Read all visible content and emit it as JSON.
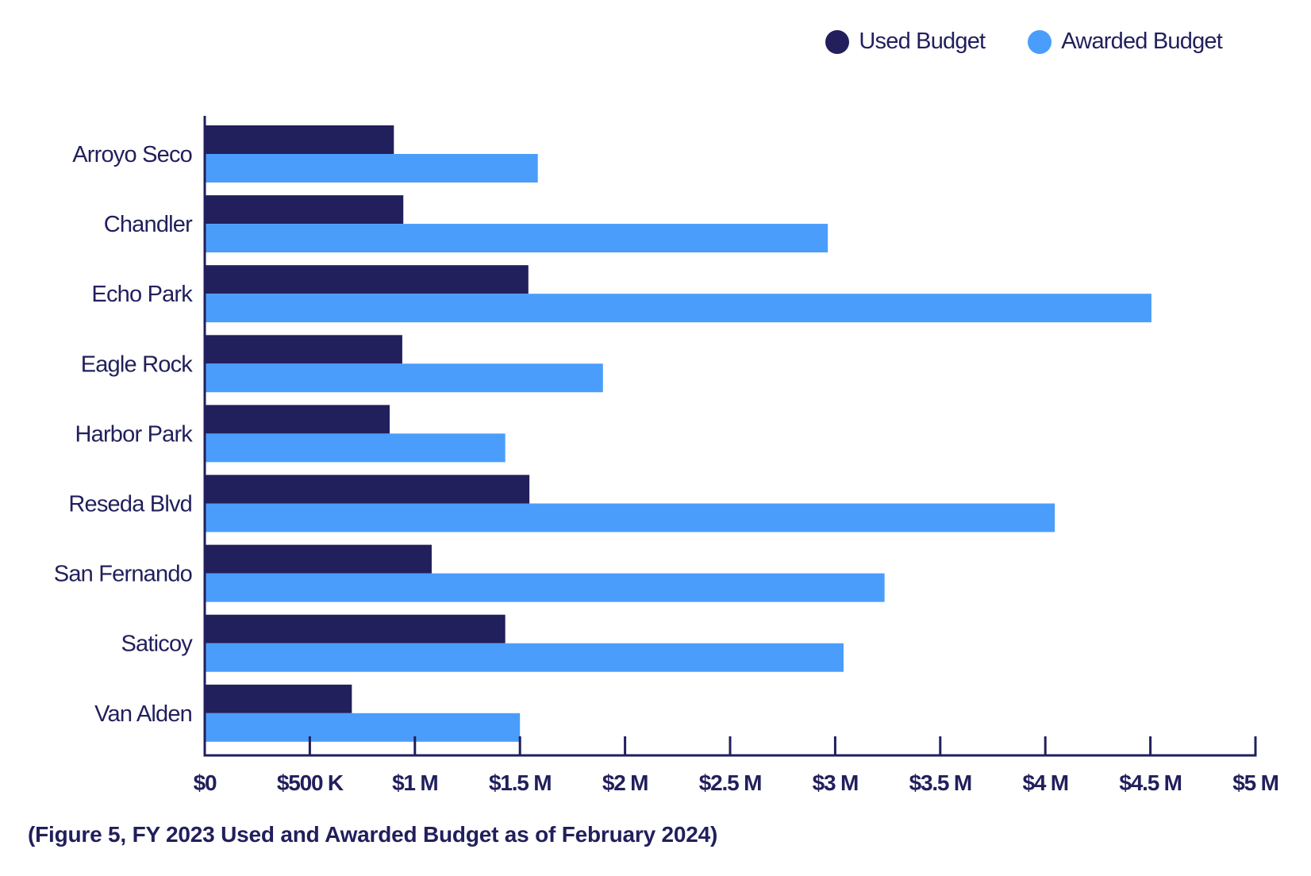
{
  "legend": {
    "used_label": "Used Budget",
    "awarded_label": "Awarded Budget"
  },
  "caption": "(Figure 5, FY 2023 Used and Awarded Budget as of February 2024)",
  "colors": {
    "used": "#211f5c",
    "awarded": "#4a9dfb",
    "axis": "#211f5c"
  },
  "chart_data": {
    "type": "bar",
    "orientation": "horizontal",
    "title": "",
    "xlabel": "",
    "ylabel": "",
    "categories": [
      "Arroyo Seco",
      "Chandler",
      "Echo Park",
      "Eagle Rock",
      "Harbor Park",
      "Reseda Blvd",
      "San Fernando",
      "Saticoy",
      "Van Alden"
    ],
    "series": [
      {
        "name": "Used Budget",
        "values": [
          900000,
          945000,
          1540000,
          940000,
          880000,
          1545000,
          1080000,
          1430000,
          700000
        ]
      },
      {
        "name": "Awarded Budget",
        "values": [
          1585000,
          2965000,
          4505000,
          1895000,
          1430000,
          4045000,
          3235000,
          3040000,
          1500000
        ]
      }
    ],
    "xlim": [
      0,
      5000000
    ],
    "x_ticks": [
      0,
      500000,
      1000000,
      1500000,
      2000000,
      2500000,
      3000000,
      3500000,
      4000000,
      4500000,
      5000000
    ],
    "x_tick_labels": [
      "$0",
      "$500 K",
      "$1 M",
      "$1.5 M",
      "$2 M",
      "$2.5 M",
      "$3 M",
      "$3.5 M",
      "$4 M",
      "$4.5 M",
      "$5 M"
    ],
    "grid": false,
    "legend_position": "top-right"
  }
}
